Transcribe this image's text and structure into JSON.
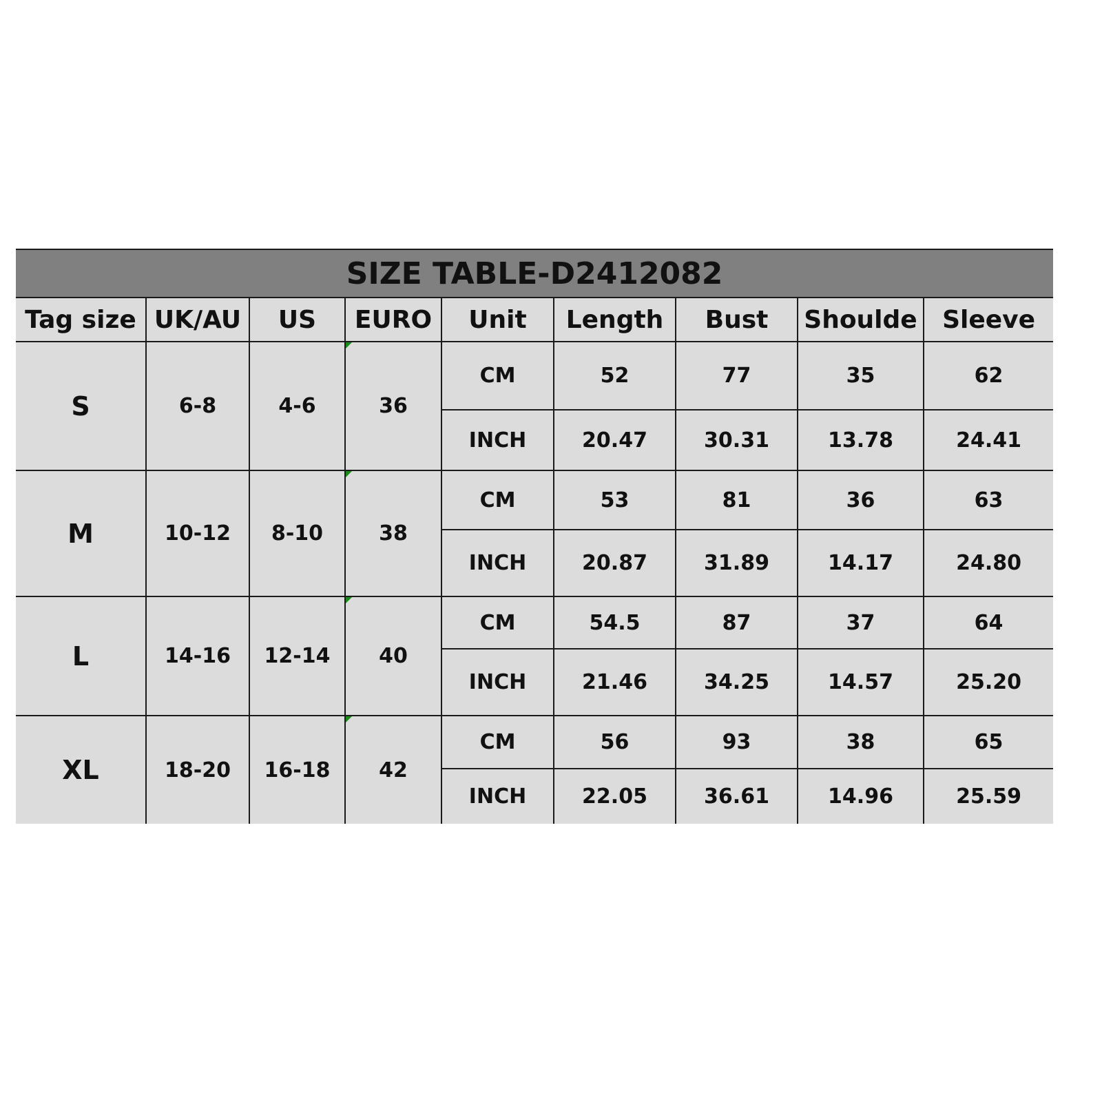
{
  "title": "SIZE TABLE-D2412082",
  "headers": [
    "Tag size",
    "UK/AU",
    "US",
    "EURO",
    "Unit",
    "Length",
    "Bust",
    "Shoulde",
    "Sleeve"
  ],
  "colors": {
    "title_bg": "#808080",
    "cell_bg": "#dcdcdc",
    "marker": "#1a8a1a"
  },
  "rows": [
    {
      "tag": "S",
      "uk": "6-8",
      "us": "4-6",
      "euro": "36",
      "cm": {
        "unit": "CM",
        "values": [
          "52",
          "77",
          "35",
          "62"
        ]
      },
      "inch": {
        "unit": "INCH",
        "values": [
          "20.47",
          "30.31",
          "13.78",
          "24.41"
        ]
      }
    },
    {
      "tag": "M",
      "uk": "10-12",
      "us": "8-10",
      "euro": "38",
      "cm": {
        "unit": "CM",
        "values": [
          "53",
          "81",
          "36",
          "63"
        ]
      },
      "inch": {
        "unit": "INCH",
        "values": [
          "20.87",
          "31.89",
          "14.17",
          "24.80"
        ]
      }
    },
    {
      "tag": "L",
      "uk": "14-16",
      "us": "12-14",
      "euro": "40",
      "cm": {
        "unit": "CM",
        "values": [
          "54.5",
          "87",
          "37",
          "64"
        ]
      },
      "inch": {
        "unit": "INCH",
        "values": [
          "21.46",
          "34.25",
          "14.57",
          "25.20"
        ]
      }
    },
    {
      "tag": "XL",
      "uk": "18-20",
      "us": "16-18",
      "euro": "42",
      "cm": {
        "unit": "CM",
        "values": [
          "56",
          "93",
          "38",
          "65"
        ]
      },
      "inch": {
        "unit": "INCH",
        "values": [
          "22.05",
          "36.61",
          "14.96",
          "25.59"
        ]
      }
    }
  ]
}
